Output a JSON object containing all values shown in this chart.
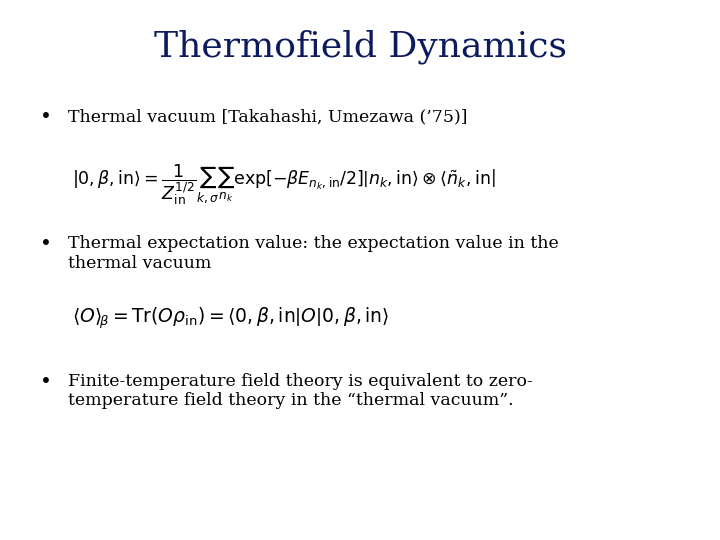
{
  "title": "Thermofield Dynamics",
  "title_color": "#0d1b5e",
  "title_fontsize": 26,
  "background_color": "#ffffff",
  "text_color": "#000000",
  "body_fontsize": 12.5,
  "bullet1_text": "Thermal vacuum [Takahashi, Umezawa (’75)]",
  "bullet2_text": "Thermal expectation value: the expectation value in the\nthermal vacuum",
  "bullet3_text": "Finite-temperature field theory is equivalent to zero-\ntemperature field theory in the “thermal vacuum”."
}
